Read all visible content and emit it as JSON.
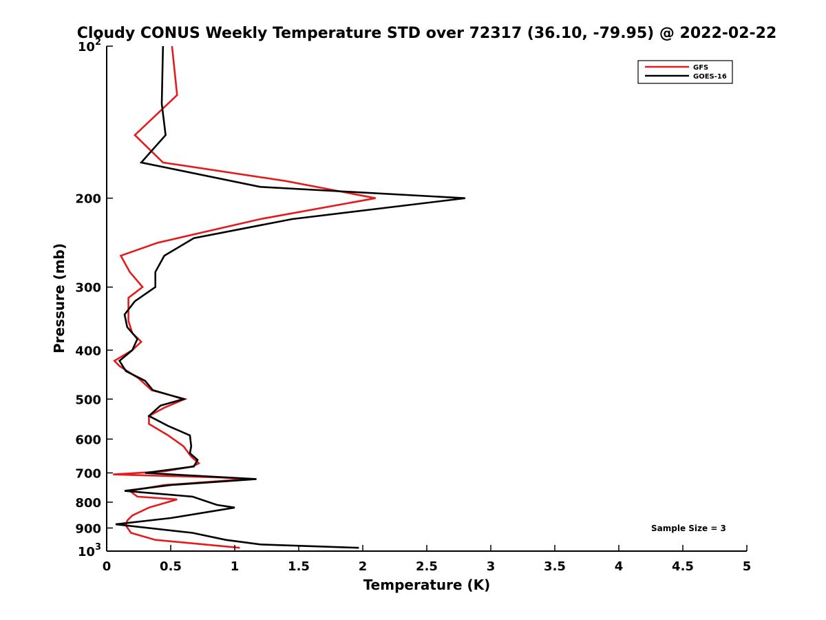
{
  "chart_data": {
    "type": "line",
    "title": "Cloudy CONUS Weekly Temperature STD over 72317 (36.10, -79.95) @ 2022-02-22",
    "xlabel": "Temperature (K)",
    "ylabel": "Pressure (mb)",
    "xlim": [
      0,
      5
    ],
    "ylim": [
      100,
      1000
    ],
    "y_scale": "log",
    "y_reversed": true,
    "grid": false,
    "x_ticks": [
      0,
      0.5,
      1,
      1.5,
      2,
      2.5,
      3,
      3.5,
      4,
      4.5,
      5
    ],
    "x_tick_labels": [
      "0",
      "0.5",
      "1",
      "1.5",
      "2",
      "2.5",
      "3",
      "3.5",
      "4",
      "4.5",
      "5"
    ],
    "y_ticks": [
      100,
      200,
      300,
      400,
      500,
      600,
      700,
      800,
      900,
      1000
    ],
    "y_tick_labels": [
      {
        "base": "10",
        "exp": "2"
      },
      {
        "base": "200",
        "exp": ""
      },
      {
        "base": "300",
        "exp": ""
      },
      {
        "base": "400",
        "exp": ""
      },
      {
        "base": "500",
        "exp": ""
      },
      {
        "base": "600",
        "exp": ""
      },
      {
        "base": "700",
        "exp": ""
      },
      {
        "base": "800",
        "exp": ""
      },
      {
        "base": "900",
        "exp": ""
      },
      {
        "base": "10",
        "exp": "3"
      }
    ],
    "legend_position": "top-right",
    "annotation": "Sample Size = 3",
    "series": [
      {
        "name": "GFS",
        "color": "#e41a1c",
        "points": [
          [
            0.51,
            100
          ],
          [
            0.55,
            125
          ],
          [
            0.22,
            150
          ],
          [
            0.44,
            170
          ],
          [
            1.4,
            185
          ],
          [
            2.1,
            200
          ],
          [
            1.2,
            220
          ],
          [
            0.4,
            245
          ],
          [
            0.11,
            260
          ],
          [
            0.18,
            280
          ],
          [
            0.28,
            300
          ],
          [
            0.17,
            315
          ],
          [
            0.17,
            350
          ],
          [
            0.2,
            370
          ],
          [
            0.27,
            385
          ],
          [
            0.2,
            400
          ],
          [
            0.06,
            420
          ],
          [
            0.1,
            430
          ],
          [
            0.25,
            455
          ],
          [
            0.35,
            480
          ],
          [
            0.61,
            500
          ],
          [
            0.45,
            520
          ],
          [
            0.33,
            540
          ],
          [
            0.33,
            560
          ],
          [
            0.48,
            590
          ],
          [
            0.6,
            620
          ],
          [
            0.66,
            650
          ],
          [
            0.72,
            670
          ],
          [
            0.67,
            680
          ],
          [
            0.45,
            695
          ],
          [
            0.05,
            705
          ],
          [
            0.9,
            715
          ],
          [
            1.1,
            720
          ],
          [
            0.45,
            740
          ],
          [
            0.18,
            760
          ],
          [
            0.24,
            780
          ],
          [
            0.55,
            790
          ],
          [
            0.33,
            820
          ],
          [
            0.2,
            850
          ],
          [
            0.16,
            870
          ],
          [
            0.15,
            890
          ],
          [
            0.19,
            920
          ],
          [
            0.38,
            950
          ],
          [
            1.04,
            985
          ]
        ]
      },
      {
        "name": "GOES-16",
        "color": "#000000",
        "points": [
          [
            0.44,
            100
          ],
          [
            0.43,
            130
          ],
          [
            0.46,
            150
          ],
          [
            0.27,
            170
          ],
          [
            1.2,
            190
          ],
          [
            2.8,
            200
          ],
          [
            1.45,
            220
          ],
          [
            0.68,
            240
          ],
          [
            0.45,
            260
          ],
          [
            0.38,
            280
          ],
          [
            0.38,
            300
          ],
          [
            0.22,
            320
          ],
          [
            0.14,
            340
          ],
          [
            0.16,
            360
          ],
          [
            0.24,
            380
          ],
          [
            0.2,
            400
          ],
          [
            0.1,
            420
          ],
          [
            0.15,
            440
          ],
          [
            0.3,
            460
          ],
          [
            0.36,
            480
          ],
          [
            0.6,
            500
          ],
          [
            0.42,
            515
          ],
          [
            0.33,
            540
          ],
          [
            0.48,
            565
          ],
          [
            0.65,
            590
          ],
          [
            0.66,
            620
          ],
          [
            0.65,
            640
          ],
          [
            0.71,
            660
          ],
          [
            0.68,
            680
          ],
          [
            0.3,
            700
          ],
          [
            1.17,
            720
          ],
          [
            0.5,
            740
          ],
          [
            0.14,
            760
          ],
          [
            0.67,
            780
          ],
          [
            0.86,
            810
          ],
          [
            1.0,
            820
          ],
          [
            0.5,
            860
          ],
          [
            0.07,
            885
          ],
          [
            0.67,
            920
          ],
          [
            0.93,
            950
          ],
          [
            1.2,
            970
          ],
          [
            1.97,
            985
          ]
        ]
      }
    ]
  }
}
